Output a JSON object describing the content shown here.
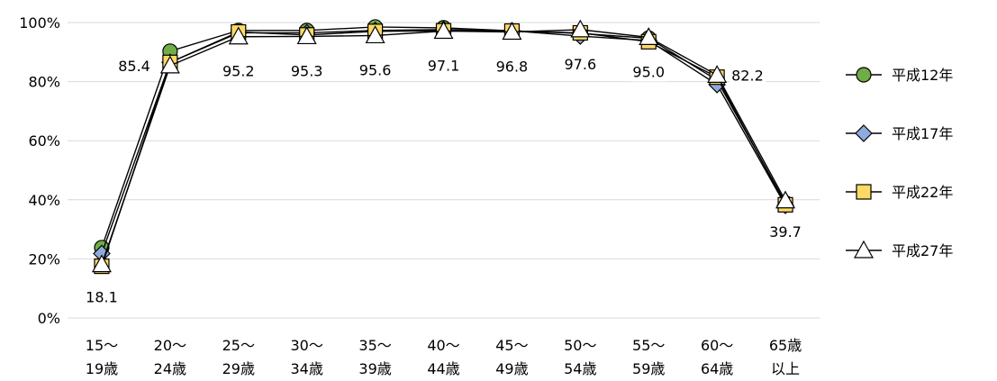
{
  "chart_data": {
    "type": "line",
    "categories": [
      [
        "15～",
        "19歳"
      ],
      [
        "20～",
        "24歳"
      ],
      [
        "25～",
        "29歳"
      ],
      [
        "30～",
        "34歳"
      ],
      [
        "35～",
        "39歳"
      ],
      [
        "40～",
        "44歳"
      ],
      [
        "45～",
        "49歳"
      ],
      [
        "50～",
        "54歳"
      ],
      [
        "55～",
        "59歳"
      ],
      [
        "60～",
        "64歳"
      ],
      [
        "65歳",
        "以上"
      ]
    ],
    "ylim": [
      0,
      100
    ],
    "yticks": [
      0,
      20,
      40,
      60,
      80,
      100
    ],
    "ytick_labels": [
      "0%",
      "20%",
      "40%",
      "60%",
      "80%",
      "100%"
    ],
    "grid": true,
    "legend_position": "right",
    "series": [
      {
        "name": "平成12年",
        "marker": "circle",
        "color": "#70ad47",
        "values": [
          23.8,
          90.3,
          97.3,
          97.3,
          98.5,
          98.2,
          97.2,
          96.3,
          94.7,
          80.5,
          38.9
        ]
      },
      {
        "name": "平成17年",
        "marker": "diamond",
        "color": "#8faadc",
        "values": [
          21.8,
          86.5,
          96.5,
          96.5,
          97.3,
          97.6,
          97.2,
          95.4,
          93.9,
          79.0,
          38.1
        ]
      },
      {
        "name": "平成22年",
        "marker": "square",
        "color": "#ffd966",
        "values": [
          17.5,
          86.5,
          96.8,
          95.8,
          97.0,
          97.2,
          97.1,
          96.5,
          93.5,
          81.5,
          38.3
        ]
      },
      {
        "name": "平成27年",
        "marker": "triangle",
        "color": "#ffffff",
        "values": [
          18.1,
          85.4,
          95.2,
          95.3,
          95.6,
          97.1,
          96.8,
          97.6,
          95.0,
          82.2,
          39.7
        ]
      }
    ],
    "data_labels": {
      "series": "平成27年",
      "texts": [
        "18.1",
        "85.4",
        "95.2",
        "95.3",
        "95.6",
        "97.1",
        "96.8",
        "97.6",
        "95.0",
        "82.2",
        "39.7"
      ]
    }
  }
}
